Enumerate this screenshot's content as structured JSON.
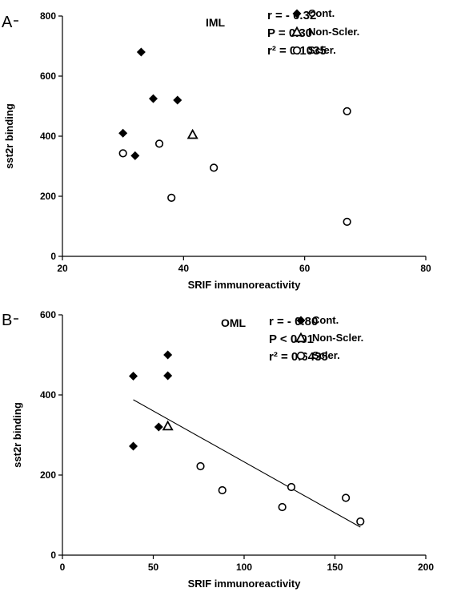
{
  "chart_data": [
    {
      "type": "scatter",
      "panel_label": "A",
      "region_label": "IML",
      "xlabel": "SRIF immunoreactivity",
      "ylabel": "sst2r binding",
      "xlim": [
        20,
        80
      ],
      "ylim": [
        0,
        800
      ],
      "xticks": [
        "20",
        "40",
        "60",
        "80"
      ],
      "yticks": [
        "0",
        "200",
        "400",
        "600",
        "800"
      ],
      "stats": [
        "r = - 0.32",
        "P = 0.30",
        "r² = 0.1035"
      ],
      "legend_position": "top-right",
      "series": [
        {
          "name": "Cont.",
          "marker": "diamond",
          "points": [
            [
              30,
              410
            ],
            [
              32,
              335
            ],
            [
              33,
              680
            ],
            [
              35,
              525
            ],
            [
              39,
              520
            ]
          ]
        },
        {
          "name": "Non-Scler.",
          "marker": "triangle",
          "points": [
            [
              41.5,
              405
            ]
          ]
        },
        {
          "name": "Scler.",
          "marker": "circle",
          "points": [
            [
              30,
              343
            ],
            [
              36,
              375
            ],
            [
              38,
              195
            ],
            [
              45,
              295
            ],
            [
              67,
              483
            ],
            [
              67,
              115
            ]
          ]
        }
      ],
      "trendline": null
    },
    {
      "type": "scatter",
      "panel_label": "B",
      "region_label": "OML",
      "xlabel": "SRIF immunoreactivity",
      "ylabel": "sst2r binding",
      "xlim": [
        0,
        200
      ],
      "ylim": [
        0,
        600
      ],
      "xticks": [
        "0",
        "50",
        "100",
        "150",
        "200"
      ],
      "yticks": [
        "0",
        "200",
        "400",
        "600"
      ],
      "stats": [
        "r = - 0.80",
        "P < 0.01",
        "r² = 0.6435"
      ],
      "legend_position": "top-right",
      "series": [
        {
          "name": "Cont.",
          "marker": "diamond",
          "points": [
            [
              39,
              447
            ],
            [
              39,
              272
            ],
            [
              53,
              320
            ],
            [
              58,
              500
            ],
            [
              58,
              448
            ]
          ]
        },
        {
          "name": "Non-Scler.",
          "marker": "triangle",
          "points": [
            [
              58,
              322
            ]
          ]
        },
        {
          "name": "Scler.",
          "marker": "circle",
          "points": [
            [
              76,
              222
            ],
            [
              88,
              162
            ],
            [
              121,
              120
            ],
            [
              126,
              170
            ],
            [
              156,
              143
            ],
            [
              164,
              84
            ]
          ]
        }
      ],
      "trendline": {
        "x": [
          39,
          164
        ],
        "y": [
          388,
          70
        ]
      }
    }
  ]
}
